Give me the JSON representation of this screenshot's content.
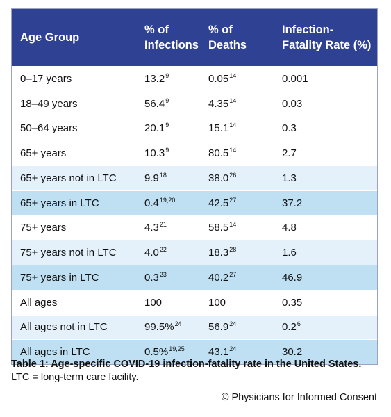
{
  "header": {
    "col1": "Age Group",
    "col2_line1": "% of",
    "col2_line2": "Infections",
    "col3": "% of Deaths",
    "col4_line1": "Infection-",
    "col4_line2": "Fatality Rate (%)"
  },
  "rows": [
    {
      "group": "0–17 years",
      "infections": "13.2",
      "infections_ref": "9",
      "deaths": "0.05",
      "deaths_ref": "14",
      "ifr": "0.001",
      "ifr_ref": "",
      "shade": "plain"
    },
    {
      "group": "18–49 years",
      "infections": "56.4",
      "infections_ref": "9",
      "deaths": "4.35",
      "deaths_ref": "14",
      "ifr": "0.03",
      "ifr_ref": "",
      "shade": "plain"
    },
    {
      "group": "50–64 years",
      "infections": "20.1",
      "infections_ref": "9",
      "deaths": "15.1",
      "deaths_ref": "14",
      "ifr": "0.3",
      "ifr_ref": "",
      "shade": "plain"
    },
    {
      "group": "65+ years",
      "infections": "10.3",
      "infections_ref": "9",
      "deaths": "80.5",
      "deaths_ref": "14",
      "ifr": "2.7",
      "ifr_ref": "",
      "shade": "plain"
    },
    {
      "group": "65+ years not in LTC",
      "infections": "9.9",
      "infections_ref": "18",
      "deaths": "38.0",
      "deaths_ref": "26",
      "ifr": "1.3",
      "ifr_ref": "",
      "shade": "light"
    },
    {
      "group": "65+ years in LTC",
      "infections": "0.4",
      "infections_ref": "19,20",
      "deaths": "42.5",
      "deaths_ref": "27",
      "ifr": "37.2",
      "ifr_ref": "",
      "shade": "mid"
    },
    {
      "group": "75+ years",
      "infections": "4.3",
      "infections_ref": "21",
      "deaths": "58.5",
      "deaths_ref": "14",
      "ifr": "4.8",
      "ifr_ref": "",
      "shade": "plain"
    },
    {
      "group": "75+ years not in LTC",
      "infections": "4.0",
      "infections_ref": "22",
      "deaths": "18.3",
      "deaths_ref": "28",
      "ifr": "1.6",
      "ifr_ref": "",
      "shade": "light"
    },
    {
      "group": "75+ years in LTC",
      "infections": "0.3",
      "infections_ref": "23",
      "deaths": "40.2",
      "deaths_ref": "27",
      "ifr": "46.9",
      "ifr_ref": "",
      "shade": "mid"
    },
    {
      "group": "All ages",
      "infections": "100",
      "infections_ref": "",
      "deaths": "100",
      "deaths_ref": "",
      "ifr": "0.35",
      "ifr_ref": "",
      "shade": "plain"
    },
    {
      "group": "All ages not in LTC",
      "infections": "99.5%",
      "infections_ref": "24",
      "deaths": "56.9",
      "deaths_ref": "24",
      "ifr": "0.2",
      "ifr_ref": "6",
      "shade": "light"
    },
    {
      "group": "All ages in LTC",
      "infections": "0.5%",
      "infections_ref": "19,25",
      "deaths": "43.1",
      "deaths_ref": "24",
      "ifr": "30.2",
      "ifr_ref": "",
      "shade": "mid"
    }
  ],
  "caption": {
    "title": "Table 1: Age-specific COVID-19 infection-fatality rate in the United States.",
    "note": "LTC = long-term care facility."
  },
  "copyright": "© Physicians for Informed Consent",
  "colors": {
    "header_bg": "#2e4192",
    "row_light": "#e4f1fb",
    "row_mid": "#bfe0f3"
  }
}
